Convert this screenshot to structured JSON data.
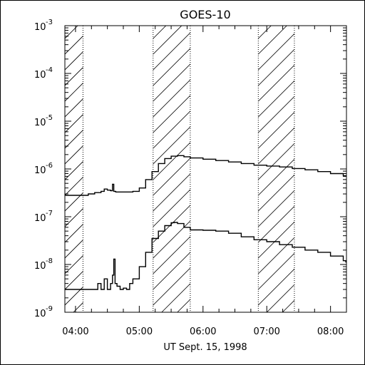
{
  "chart_data": {
    "type": "line",
    "title": "GOES-10",
    "xlabel": "UT Sept. 15, 1998",
    "ylabel": "",
    "y_scale": "log",
    "ylim_exponent": [
      -9,
      -3
    ],
    "xlim_hours": [
      3.833,
      8.25
    ],
    "x_ticks": [
      "04:00",
      "05:00",
      "06:00",
      "07:00",
      "08:00"
    ],
    "y_ticks": [
      {
        "base": "10",
        "exp": "-9"
      },
      {
        "base": "10",
        "exp": "-8"
      },
      {
        "base": "10",
        "exp": "-7"
      },
      {
        "base": "10",
        "exp": "-6"
      },
      {
        "base": "10",
        "exp": "-5"
      },
      {
        "base": "10",
        "exp": "-4"
      },
      {
        "base": "10",
        "exp": "-3"
      }
    ],
    "hatched_intervals_hours": [
      [
        3.833,
        4.117
      ],
      [
        5.217,
        5.8
      ],
      [
        6.867,
        7.433
      ]
    ],
    "series": [
      {
        "x": [
          3.84,
          3.95,
          4.05,
          4.2,
          4.3,
          4.4,
          4.45,
          4.5,
          4.55,
          4.58,
          4.6,
          4.63,
          4.7,
          4.8,
          4.9,
          5.0,
          5.1,
          5.2,
          5.3,
          5.4,
          5.5,
          5.6,
          5.7,
          5.8,
          6.0,
          6.2,
          6.4,
          6.6,
          6.8,
          7.0,
          7.2,
          7.4,
          7.6,
          7.8,
          8.0,
          8.2,
          8.24
        ],
        "y": [
          2.8e-07,
          2.8e-07,
          2.8e-07,
          3e-07,
          3.2e-07,
          3.4e-07,
          3.8e-07,
          3.6e-07,
          3.5e-07,
          4.8e-07,
          3.4e-07,
          3.3e-07,
          3.3e-07,
          3.3e-07,
          3.4e-07,
          4e-07,
          6e-07,
          8.8e-07,
          1.3e-06,
          1.65e-06,
          1.85e-06,
          1.9e-06,
          1.8e-06,
          1.7e-06,
          1.6e-06,
          1.5e-06,
          1.4e-06,
          1.3e-06,
          1.2e-06,
          1.15e-06,
          1.1e-06,
          1.02e-06,
          9.6e-07,
          8.8e-07,
          8e-07,
          7.2e-07,
          7e-07
        ]
      },
      {
        "x": [
          3.84,
          4.0,
          4.2,
          4.3,
          4.35,
          4.4,
          4.45,
          4.5,
          4.55,
          4.58,
          4.6,
          4.62,
          4.65,
          4.7,
          4.75,
          4.8,
          4.85,
          4.9,
          5.0,
          5.1,
          5.2,
          5.3,
          5.4,
          5.5,
          5.55,
          5.6,
          5.7,
          5.8,
          6.0,
          6.2,
          6.4,
          6.6,
          6.8,
          7.0,
          7.2,
          7.4,
          7.6,
          7.8,
          8.0,
          8.2,
          8.24
        ],
        "y": [
          3e-09,
          3e-09,
          3e-09,
          3e-09,
          4e-09,
          3e-09,
          5e-09,
          3e-09,
          4e-09,
          6e-09,
          1.3e-08,
          4e-09,
          3.5e-09,
          3e-09,
          3.2e-09,
          3e-09,
          4e-09,
          5e-09,
          9e-09,
          1.8e-08,
          3.5e-08,
          5e-08,
          6.5e-08,
          7.5e-08,
          7.6e-08,
          7.2e-08,
          6e-08,
          5.3e-08,
          5.2e-08,
          5e-08,
          4.5e-08,
          3.8e-08,
          3.3e-08,
          3e-08,
          2.6e-08,
          2.3e-08,
          2e-08,
          1.8e-08,
          1.5e-08,
          1.2e-08,
          1.1e-08
        ]
      }
    ]
  }
}
